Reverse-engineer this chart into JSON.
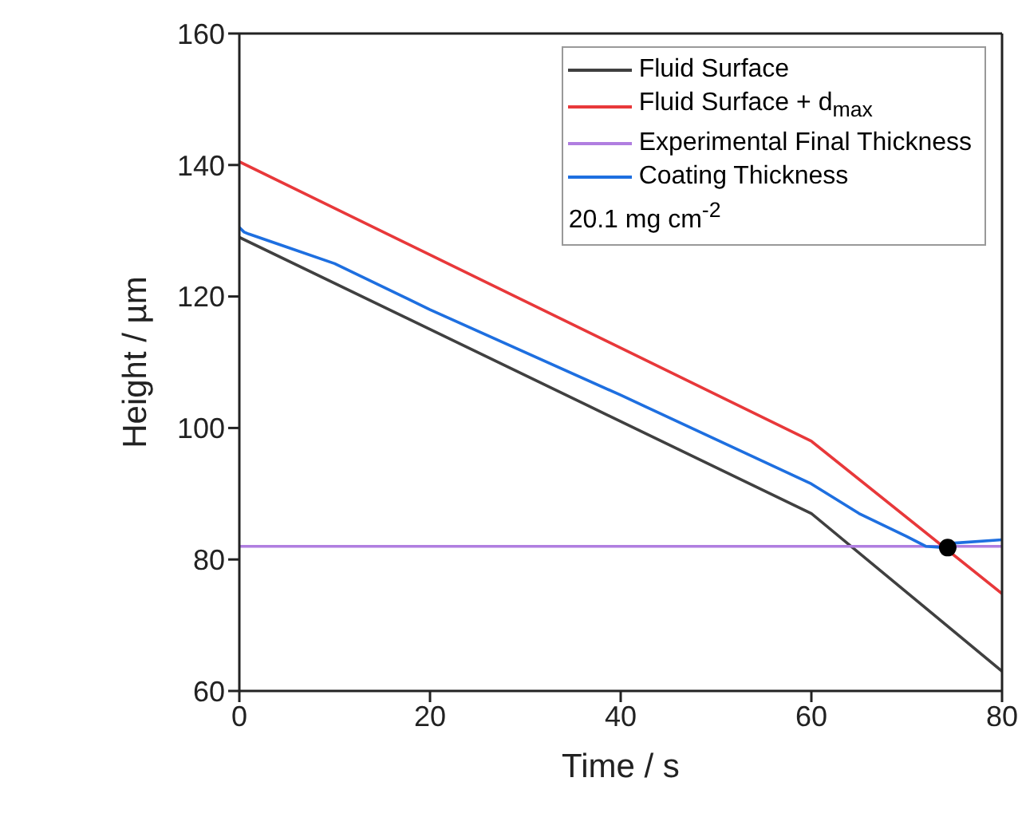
{
  "chart_data": {
    "type": "line",
    "xlabel": "Time / s",
    "ylabel": "Height / µm",
    "xlim": [
      0,
      80
    ],
    "ylim": [
      60,
      160
    ],
    "xticks": [
      0,
      20,
      40,
      60,
      80
    ],
    "yticks": [
      60,
      80,
      100,
      120,
      140,
      160
    ],
    "grid": false,
    "legend": "top right",
    "marker": "none",
    "line_style": "solid",
    "annotations": [
      "20.1 mg cm$^{-2}$"
    ],
    "series": [
      {
        "name": "Fluid Surface",
        "color": "#404040",
        "x": [
          0,
          60,
          80
        ],
        "values": [
          129,
          87,
          63
        ]
      },
      {
        "name": "Fluid Surface + d$_{max}$",
        "color": "#e8383a",
        "x": [
          0,
          60,
          80
        ],
        "values": [
          140.5,
          98,
          74.8
        ]
      },
      {
        "name": "Experimental Final Thickness",
        "color": "#b07ee0",
        "x": [
          0,
          80
        ],
        "values": [
          82,
          82
        ]
      },
      {
        "name": "Coating Thickness",
        "color": "#1e6fe0",
        "x": [
          0,
          0.5,
          1,
          5,
          10,
          20,
          40,
          60,
          65,
          70,
          72,
          74,
          75,
          80
        ],
        "values": [
          130.5,
          129.8,
          129.5,
          127.5,
          125,
          118,
          105,
          91.5,
          87,
          83.5,
          82,
          81.8,
          82.5,
          83
        ]
      },
      {
        "type": "scatter",
        "color": "#000000",
        "x": [
          74.3
        ],
        "values": [
          81.8
        ],
        "marker": "circle"
      }
    ]
  }
}
